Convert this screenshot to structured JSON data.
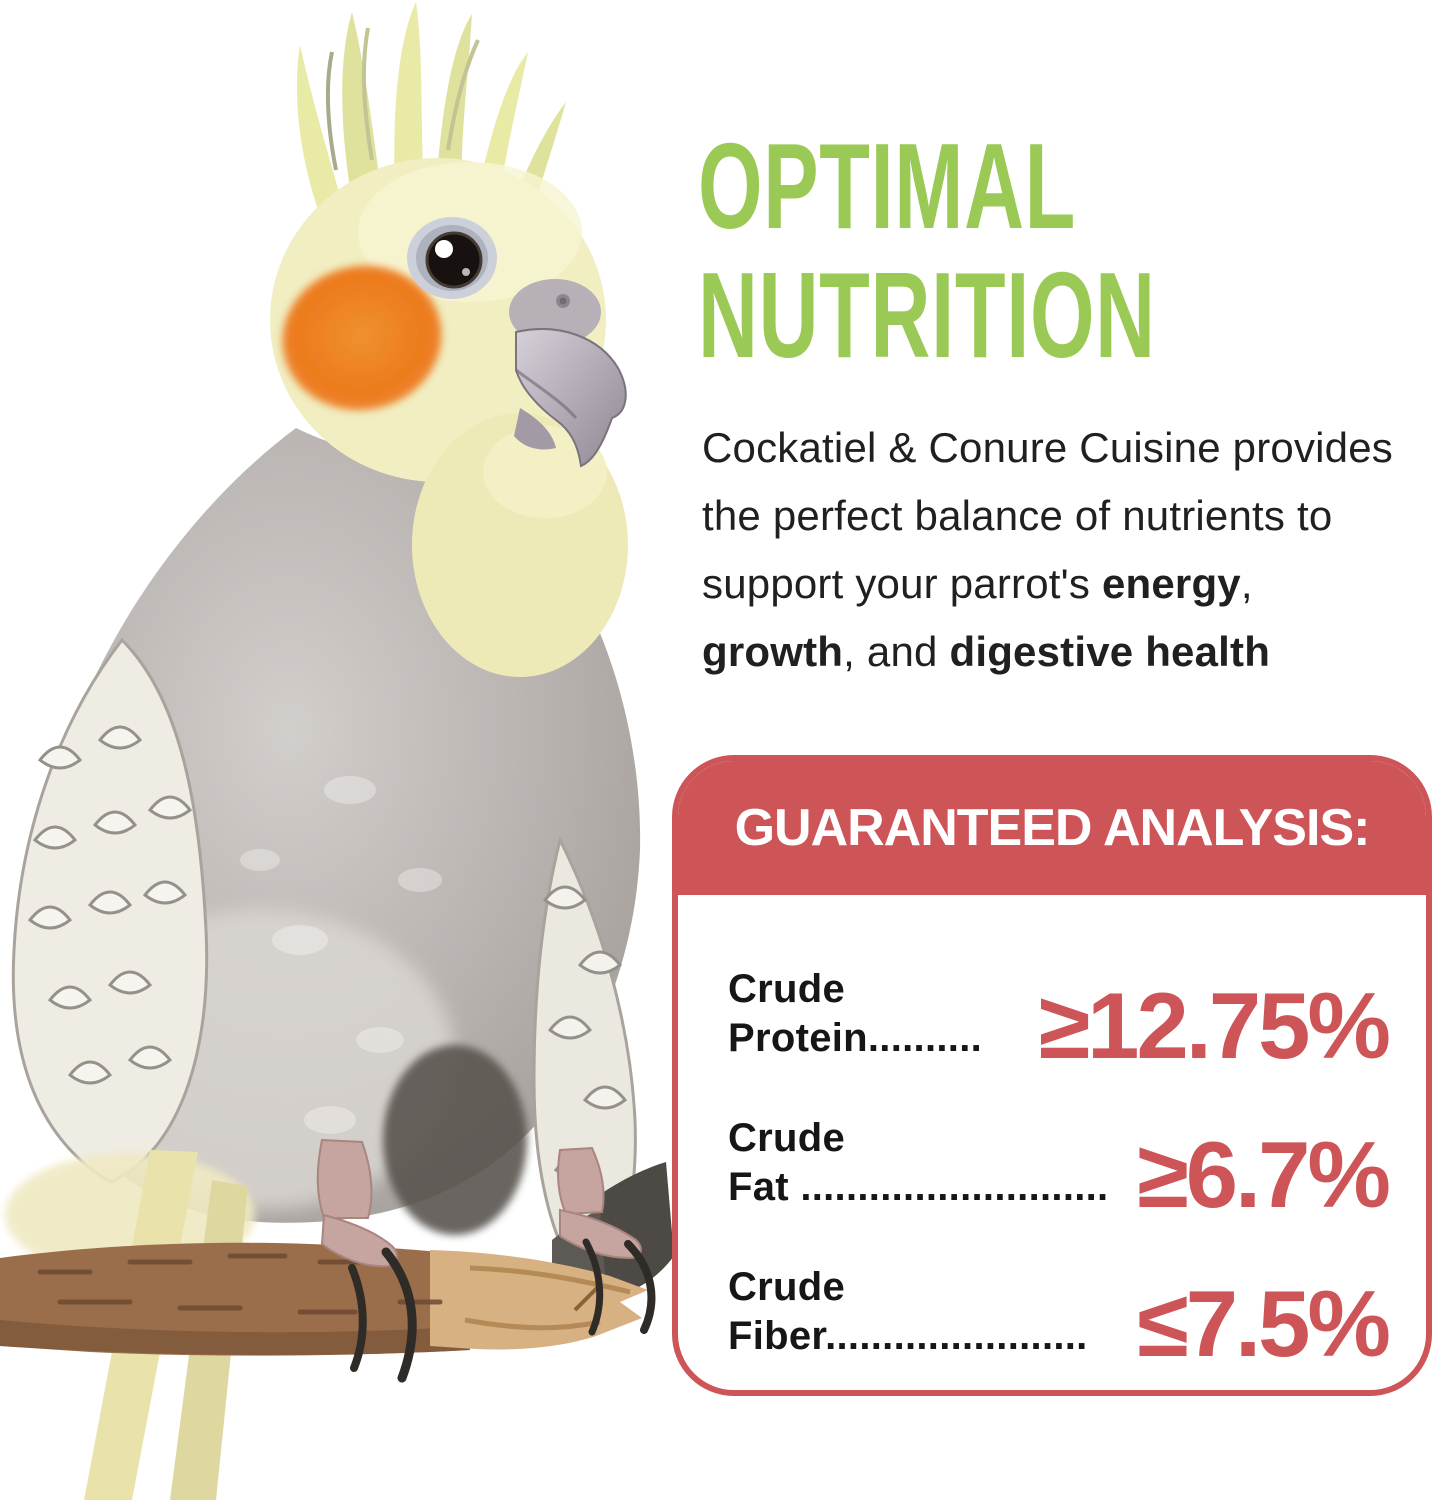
{
  "colors": {
    "accent_green": "#9aca55",
    "accent_red": "#cd5457",
    "text_dark": "#202022"
  },
  "heading": {
    "line1": "OPTIMAL",
    "line2": "NUTRITION"
  },
  "paragraph": {
    "lines": [
      [
        {
          "t": "Cockatiel & Conure Cuisine provides"
        }
      ],
      [
        {
          "t": "the perfect balance of nutrients to"
        }
      ],
      [
        {
          "t": "support your parrot's "
        },
        {
          "t": "energy",
          "b": true
        },
        {
          "t": ","
        }
      ],
      [
        {
          "t": "growth",
          "b": true
        },
        {
          "t": ", and "
        },
        {
          "t": "digestive health",
          "b": true
        }
      ]
    ]
  },
  "analysis_card": {
    "title": "GUARANTEED ANALYSIS:",
    "rows": [
      {
        "label_line1": "Crude",
        "label_line2": "Protein..........",
        "value": "≥12.75%"
      },
      {
        "label_line1": "Crude",
        "label_line2": "Fat ...........................",
        "value": "≥6.7%"
      },
      {
        "label_line1": "Crude",
        "label_line2": "Fiber.......................",
        "value": "≤7.5%"
      }
    ]
  }
}
